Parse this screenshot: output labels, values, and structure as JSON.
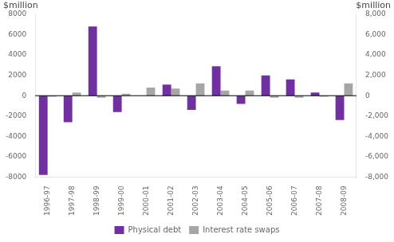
{
  "chart_data": {
    "type": "bar",
    "categories": [
      "1996-97",
      "1997-98",
      "1998-99",
      "1999-00",
      "2000-01",
      "2001-02",
      "2002-03",
      "2003-04",
      "2004-05",
      "2005-06",
      "2006-07",
      "2007-08",
      "2008-09"
    ],
    "series": [
      {
        "name": "Physical debt",
        "color": "#7030a0",
        "values": [
          -7800,
          -2600,
          6800,
          -1600,
          0,
          1100,
          -1400,
          2900,
          -800,
          2000,
          1600,
          300,
          -2400
        ]
      },
      {
        "name": "Interest rate swaps",
        "color": "#a6a6a6",
        "values": [
          -100,
          300,
          -200,
          200,
          800,
          700,
          1200,
          500,
          500,
          -200,
          -200,
          -100,
          1200
        ]
      }
    ],
    "ylabel": "$million",
    "y2label": "$million",
    "ylim": [
      -8000,
      8000
    ],
    "yticks": [
      -8000,
      -6000,
      -4000,
      -2000,
      0,
      2000,
      4000,
      6000,
      8000
    ],
    "y2lim": [
      -8000,
      8000
    ],
    "y2ticks": [
      {
        "value": -8000,
        "label": "-8,000"
      },
      {
        "value": -6000,
        "label": "-6,000"
      },
      {
        "value": -4000,
        "label": "-4,000"
      },
      {
        "value": -2000,
        "label": "-2,000"
      },
      0,
      {
        "value": 2000,
        "label": "2,000"
      },
      {
        "value": 4000,
        "label": "4,000"
      },
      {
        "value": 6000,
        "label": "6,000"
      },
      {
        "value": 8000,
        "label": "8,000"
      }
    ],
    "grid": false,
    "legend": "bottom"
  }
}
